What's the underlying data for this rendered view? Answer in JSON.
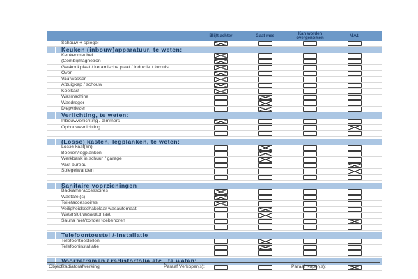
{
  "colors": {
    "header_bar": "#6d99c8",
    "header_text": "#1b3a66",
    "section_bar": "#abc6e3",
    "section_text": "#17375d",
    "row_text": "#3d3d3d",
    "row_border": "#d9d9d9",
    "checkbox_border": "#3c3c3c",
    "check_mark": "#333333"
  },
  "columns": [
    "Blijft achter",
    "Gaat mee",
    "Kan worden overgenomen",
    "N.v.t."
  ],
  "column_keys": [
    "blijft-achter",
    "gaat-mee",
    "kan-worden-overgenomen",
    "nvt"
  ],
  "intro_rows": [
    {
      "label": "Schouw + spiegel",
      "checked": 0
    }
  ],
  "sections": [
    {
      "title": "Keuken (inbouw)apparatuur, te weten:",
      "gap_before": false,
      "rows": [
        {
          "label": "Keukenmeubel",
          "checked": 0
        },
        {
          "label": "(Combi)magnetron",
          "checked": 0
        },
        {
          "label": "Gaskookplaat / keramische plaat / inductie / fornuis",
          "checked": 0
        },
        {
          "label": "Oven",
          "checked": 0
        },
        {
          "label": "Vaatwasser",
          "checked": 0
        },
        {
          "label": "Afzuigkap / schouw",
          "checked": 0
        },
        {
          "label": "Koelkast",
          "checked": 0
        },
        {
          "label": "Wasmachine",
          "checked": 1
        },
        {
          "label": "Wasdroger",
          "checked": 1
        },
        {
          "label": "Diepvriezer",
          "checked": 1
        }
      ]
    },
    {
      "title": "Verlichting, te weten:",
      "gap_before": false,
      "rows": [
        {
          "label": "Inbouwverlichting / dimmers",
          "checked": 0
        },
        {
          "label": "Opbouwverlichting",
          "checked": 3
        },
        {
          "label": "",
          "checked": null
        }
      ]
    },
    {
      "title": "(Losse) kasten, legplanken, te weten:",
      "gap_before": true,
      "rows": [
        {
          "label": "Losse kast(en)",
          "checked": 1
        },
        {
          "label": "Boeken/legplanken",
          "checked": 1
        },
        {
          "label": "Werkbank in schuur / garage",
          "checked": 1
        },
        {
          "label": "Vast bureau",
          "checked": 3
        },
        {
          "label": "Spiegelwanden",
          "checked": 3
        },
        {
          "label": "",
          "checked": null
        }
      ]
    },
    {
      "title": "Sanitaire voorzieningen",
      "gap_before": true,
      "rows": [
        {
          "label": "Badkameraccessoires",
          "checked": 0
        },
        {
          "label": "Wastafel(s)",
          "checked": 0
        },
        {
          "label": "Toiletaccessoires",
          "checked": 0
        },
        {
          "label": "Veiligheidsschakelaar wasautomaat",
          "checked": 1
        },
        {
          "label": "Waterslot wasautomaat",
          "checked": 1
        },
        {
          "label": "Sauna met/zonder toebehoren",
          "checked": 3
        },
        {
          "label": "",
          "checked": null
        }
      ]
    },
    {
      "title": "Telefoontoestel /-installatie",
      "gap_before": true,
      "rows": [
        {
          "label": "Telefoontoestellen",
          "checked": 1
        },
        {
          "label": "Telefooninstallatie",
          "checked": 1
        },
        {
          "label": "",
          "checked": null
        }
      ]
    },
    {
      "title": "Voorzetramen / radiatorfolie etc., te weten:",
      "gap_before": true,
      "rows": [
        {
          "label": "Radiatorafwerking",
          "checked": 3
        }
      ]
    }
  ],
  "footer": {
    "object_label": "Object:",
    "verkoper_label": "Paraaf Verkoper(s):",
    "koper_label": "Paraaf Koper(s):"
  }
}
